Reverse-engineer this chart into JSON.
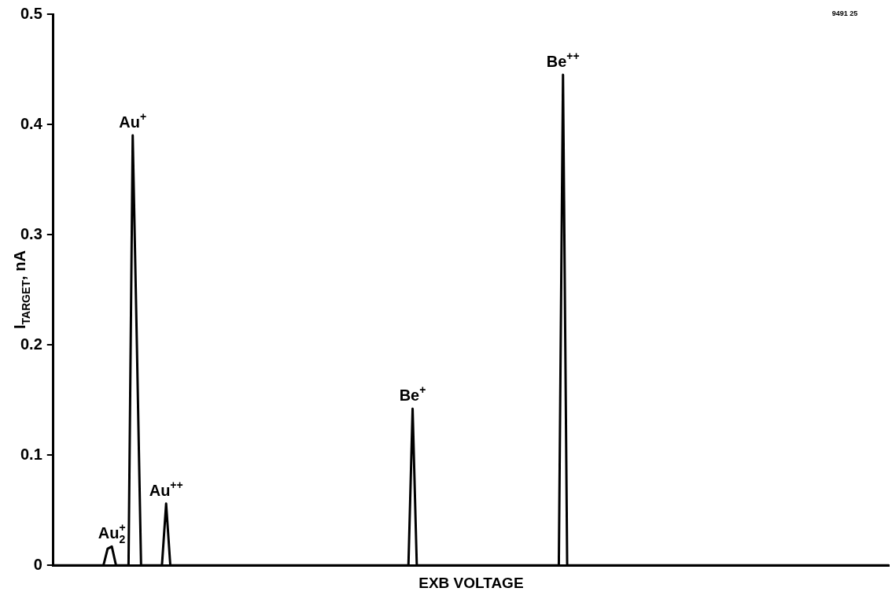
{
  "chart_data": {
    "type": "line",
    "xlabel": "EXB VOLTAGE",
    "ylabel": "I$_{TARGET}$, nA",
    "color": "#000000",
    "categories": [
      null,
      null,
      null,
      null,
      null,
      null,
      null,
      null,
      null,
      null,
      null,
      null,
      null,
      null,
      null,
      null,
      null,
      null,
      null,
      null,
      null,
      null,
      null,
      null,
      null,
      null,
      null,
      null,
      null,
      null,
      null,
      null,
      null,
      null,
      null,
      null,
      null,
      null,
      null,
      null,
      null,
      null,
      null,
      null,
      null,
      null,
      null,
      null,
      null,
      null,
      null,
      null,
      null,
      null,
      null,
      null,
      null,
      null,
      null,
      null,
      null,
      null,
      null,
      null,
      null,
      null,
      null,
      null,
      null,
      null,
      null,
      null,
      null,
      null,
      null,
      null,
      null,
      null,
      null,
      null,
      null,
      null,
      null,
      null,
      null,
      null,
      null,
      null,
      null,
      null,
      null,
      null,
      null,
      null,
      null,
      null,
      null,
      null,
      null,
      null,
      null,
      null,
      null,
      null,
      null,
      null,
      null,
      null,
      null,
      null,
      null,
      null,
      null,
      null,
      null,
      null,
      null,
      null,
      null,
      null,
      null,
      null,
      null,
      null,
      null,
      null,
      null,
      null,
      null,
      null,
      null,
      null,
      null,
      null,
      null,
      null,
      null,
      null,
      null,
      null,
      null,
      null,
      null,
      null,
      null,
      null,
      null,
      null,
      null,
      null,
      null,
      null,
      null,
      null,
      null,
      null,
      null,
      null,
      null,
      null,
      null,
      null,
      null,
      null,
      null,
      null,
      null,
      null,
      null,
      null,
      null,
      null,
      null,
      null,
      null,
      null,
      null,
      null,
      null,
      null,
      null,
      null,
      null,
      null,
      null,
      null,
      null,
      null,
      null,
      null,
      null,
      null,
      null,
      null,
      null,
      null,
      null,
      null,
      null,
      null,
      null
    ],
    "values": [
      0,
      0,
      0,
      0,
      0,
      0,
      0,
      0,
      0,
      0,
      0,
      0,
      0,
      0.015,
      0.017,
      0,
      0,
      0,
      0,
      0.39,
      0.2,
      0,
      0,
      0,
      0,
      0,
      0,
      0.056,
      0,
      0,
      0,
      0,
      0,
      0,
      0,
      0,
      0,
      0,
      0,
      0,
      0,
      0,
      0,
      0,
      0,
      0,
      0,
      0,
      0,
      0,
      0,
      0,
      0,
      0,
      0,
      0,
      0,
      0,
      0,
      0,
      0,
      0,
      0,
      0,
      0,
      0,
      0,
      0,
      0,
      0,
      0,
      0,
      0,
      0,
      0,
      0,
      0,
      0,
      0,
      0,
      0,
      0,
      0,
      0,
      0,
      0,
      0.142,
      0,
      0,
      0,
      0,
      0,
      0,
      0,
      0,
      0,
      0,
      0,
      0,
      0,
      0,
      0,
      0,
      0,
      0,
      0,
      0,
      0,
      0,
      0,
      0,
      0,
      0,
      0,
      0,
      0,
      0,
      0,
      0,
      0,
      0,
      0,
      0.445,
      0,
      0,
      0,
      0,
      0,
      0,
      0,
      0,
      0,
      0,
      0,
      0,
      0,
      0,
      0,
      0,
      0,
      0,
      0,
      0,
      0,
      0,
      0,
      0,
      0,
      0,
      0,
      0,
      0,
      0,
      0,
      0,
      0,
      0,
      0,
      0,
      0,
      0,
      0,
      0,
      0,
      0,
      0,
      0,
      0,
      0,
      0,
      0,
      0,
      0,
      0,
      0,
      0,
      0,
      0,
      0,
      0,
      0,
      0,
      0,
      0,
      0,
      0,
      0,
      0,
      0,
      0,
      0,
      0,
      0,
      0,
      0,
      0,
      0,
      0,
      0,
      0,
      0
    ],
    "ylim": [
      0,
      0.5
    ],
    "yticks": [
      0,
      0.1,
      0.2,
      0.3,
      0.4,
      0.5
    ],
    "grid": false,
    "legend": false,
    "marker": "none",
    "line_style": "solid",
    "annotations": [
      "Au$_{2}$$^{+}$",
      "Au$^{+}$",
      "Au$^{++}$",
      "Be$^{+}$",
      "Be$^{++}$",
      "9491 25"
    ]
  }
}
